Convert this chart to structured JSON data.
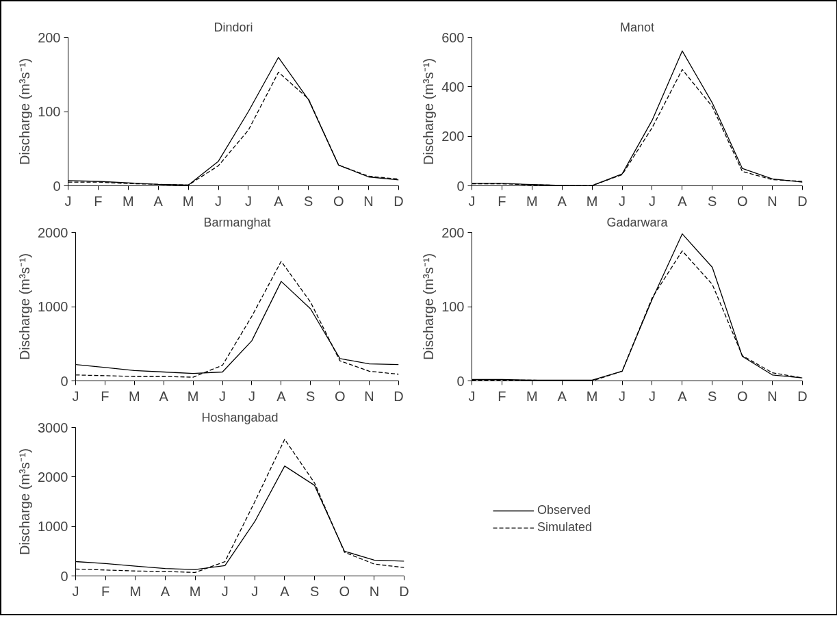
{
  "chart_data": [
    {
      "type": "line",
      "title": "Dindori",
      "ylabel": "Discharge (m³s⁻¹)",
      "categories": [
        "J",
        "F",
        "M",
        "A",
        "M",
        "J",
        "J",
        "A",
        "S",
        "O",
        "N",
        "D"
      ],
      "ylim": [
        0,
        200
      ],
      "yticks": [
        0,
        100,
        200
      ],
      "grid": false,
      "legend": false,
      "marker": "none",
      "series": [
        {
          "color": "#000000",
          "line_style": "solid",
          "values": [
            7,
            6,
            4,
            2,
            1,
            33,
            100,
            173,
            116,
            28,
            12,
            8
          ]
        },
        {
          "color": "#000000",
          "line_style": "dashed",
          "values": [
            5,
            5,
            3,
            2,
            1,
            27,
            75,
            153,
            117,
            28,
            13,
            9
          ]
        }
      ]
    },
    {
      "type": "line",
      "title": "Manot",
      "ylabel": "Discharge (m³s⁻¹)",
      "categories": [
        "J",
        "F",
        "M",
        "A",
        "M",
        "J",
        "J",
        "A",
        "S",
        "O",
        "N",
        "D"
      ],
      "ylim": [
        0,
        600
      ],
      "yticks": [
        0,
        200,
        400,
        600
      ],
      "grid": false,
      "legend": false,
      "marker": "none",
      "series": [
        {
          "color": "#000000",
          "line_style": "solid",
          "values": [
            10,
            10,
            5,
            2,
            1,
            48,
            265,
            545,
            335,
            70,
            28,
            15
          ]
        },
        {
          "color": "#000000",
          "line_style": "dashed",
          "values": [
            8,
            8,
            4,
            2,
            1,
            45,
            235,
            470,
            320,
            58,
            25,
            18
          ]
        }
      ]
    },
    {
      "type": "line",
      "title": "Barmanghat",
      "ylabel": "Discharge (m³s⁻¹)",
      "categories": [
        "J",
        "F",
        "M",
        "A",
        "M",
        "J",
        "J",
        "A",
        "S",
        "O",
        "N",
        "D"
      ],
      "ylim": [
        0,
        2000
      ],
      "yticks": [
        0,
        1000,
        2000
      ],
      "grid": false,
      "legend": false,
      "marker": "none",
      "series": [
        {
          "color": "#000000",
          "line_style": "solid",
          "values": [
            220,
            180,
            140,
            120,
            100,
            120,
            540,
            1340,
            970,
            300,
            230,
            220
          ]
        },
        {
          "color": "#000000",
          "line_style": "dashed",
          "values": [
            80,
            70,
            60,
            60,
            50,
            210,
            870,
            1610,
            1060,
            270,
            130,
            90
          ]
        }
      ]
    },
    {
      "type": "line",
      "title": "Gadarwara",
      "ylabel": "Discharge (m³s⁻¹)",
      "categories": [
        "J",
        "F",
        "M",
        "A",
        "M",
        "J",
        "J",
        "A",
        "S",
        "O",
        "N",
        "D"
      ],
      "ylim": [
        0,
        200
      ],
      "yticks": [
        0,
        100,
        200
      ],
      "grid": false,
      "legend": false,
      "marker": "none",
      "series": [
        {
          "color": "#000000",
          "line_style": "solid",
          "values": [
            2,
            2,
            1,
            1,
            1,
            13,
            110,
            198,
            153,
            33,
            8,
            4
          ]
        },
        {
          "color": "#000000",
          "line_style": "dashed",
          "values": [
            1,
            1,
            1,
            0,
            0,
            13,
            112,
            175,
            130,
            34,
            11,
            4
          ]
        }
      ]
    },
    {
      "type": "line",
      "title": "Hoshangabad",
      "ylabel": "Discharge (m³s⁻¹)",
      "categories": [
        "J",
        "F",
        "M",
        "A",
        "M",
        "J",
        "J",
        "A",
        "S",
        "O",
        "N",
        "D"
      ],
      "ylim": [
        0,
        3000
      ],
      "yticks": [
        0,
        1000,
        2000,
        3000
      ],
      "grid": false,
      "legend": "right",
      "marker": "none",
      "series": [
        {
          "name": "Observed",
          "color": "#000000",
          "line_style": "solid",
          "values": [
            290,
            250,
            200,
            150,
            130,
            210,
            1100,
            2220,
            1830,
            500,
            320,
            300
          ]
        },
        {
          "name": "Simulated",
          "color": "#000000",
          "line_style": "dashed",
          "values": [
            140,
            120,
            100,
            90,
            70,
            290,
            1500,
            2760,
            1880,
            480,
            240,
            170
          ]
        }
      ]
    }
  ]
}
